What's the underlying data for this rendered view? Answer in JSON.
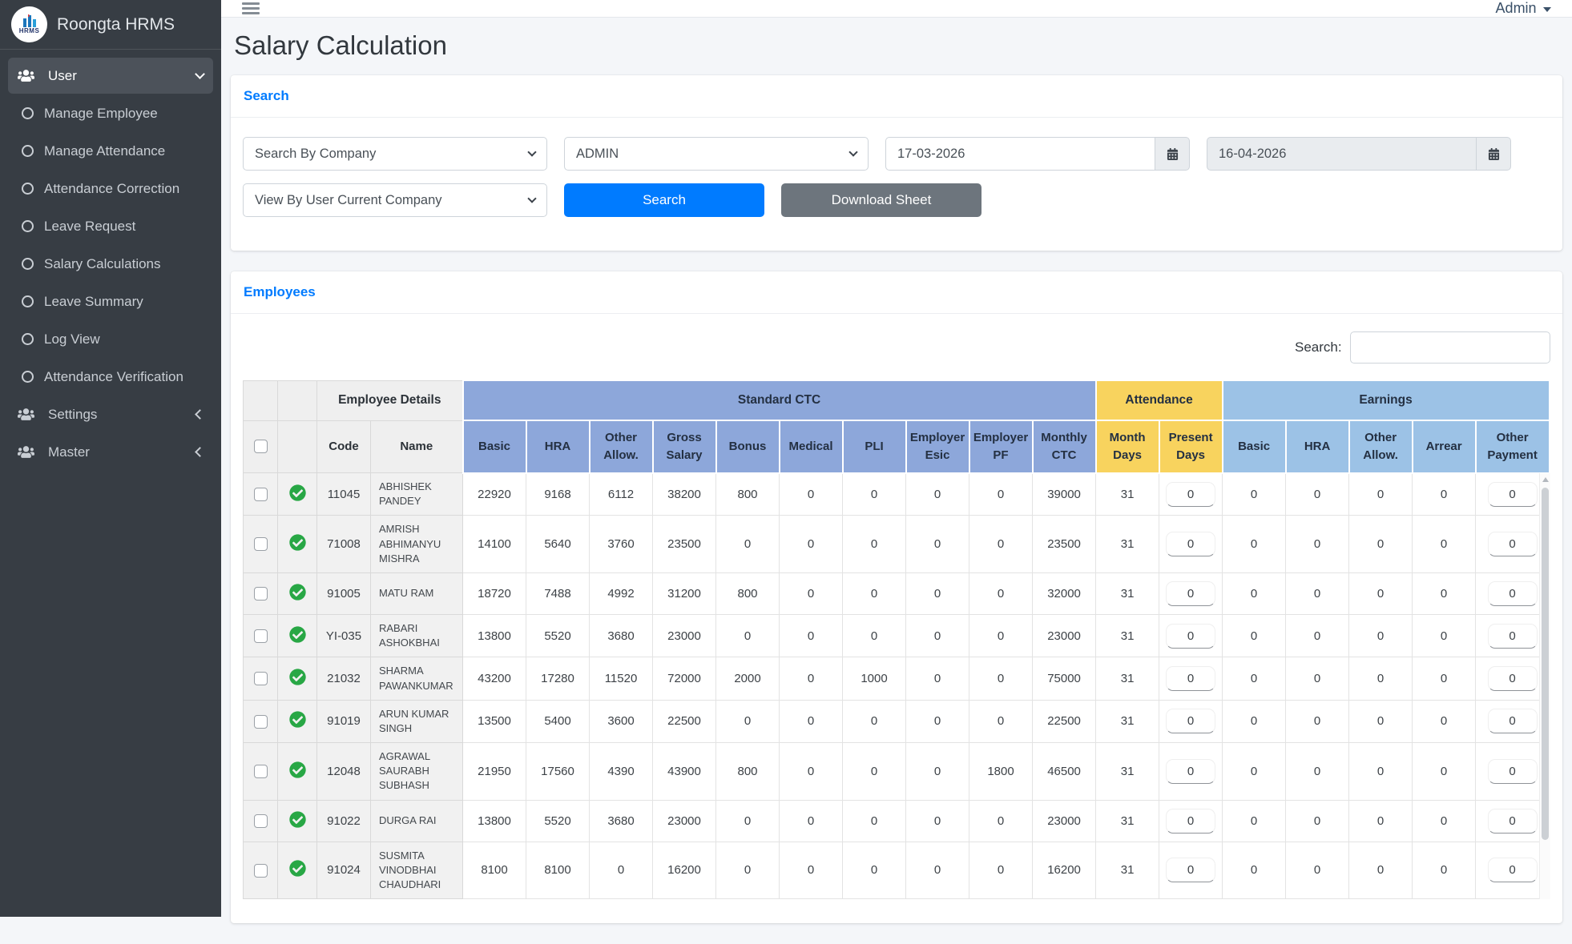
{
  "brand": {
    "logo_text": "HRMS",
    "title": "Roongta HRMS"
  },
  "topbar": {
    "user_label": "Admin"
  },
  "sidebar": {
    "user_label": "User",
    "user_children": [
      "Manage Employee",
      "Manage Attendance",
      "Attendance Correction",
      "Leave Request",
      "Salary Calculations",
      "Leave Summary",
      "Log View",
      "Attendance Verification"
    ],
    "collapsed_items": [
      "Settings",
      "Master"
    ]
  },
  "page": {
    "title": "Salary Calculation"
  },
  "search_panel": {
    "header": "Search",
    "company_select": "Search By Company",
    "admin_select": "ADMIN",
    "date_from": "17-03-2026",
    "date_to": "16-04-2026",
    "view_by_select": "View By User Current Company",
    "search_button": "Search",
    "download_button": "Download Sheet"
  },
  "employees_panel": {
    "header": "Employees",
    "search_label": "Search:",
    "search_value": ""
  },
  "table": {
    "groups": [
      {
        "label": "Employee Details",
        "key": "employee",
        "span": 2
      },
      {
        "label": "Standard CTC",
        "key": "std",
        "span": 10
      },
      {
        "label": "Attendance",
        "key": "att",
        "span": 2
      },
      {
        "label": "Earnings",
        "key": "earn",
        "span": 5
      }
    ],
    "columns": [
      {
        "label": "Code",
        "group": "employee"
      },
      {
        "label": "Name",
        "group": "employee"
      },
      {
        "label": "Basic",
        "group": "std"
      },
      {
        "label": "HRA",
        "group": "std"
      },
      {
        "label": "Other Allow.",
        "group": "std"
      },
      {
        "label": "Gross Salary",
        "group": "std"
      },
      {
        "label": "Bonus",
        "group": "std"
      },
      {
        "label": "Medical",
        "group": "std"
      },
      {
        "label": "PLI",
        "group": "std"
      },
      {
        "label": "Employer Esic",
        "group": "std"
      },
      {
        "label": "Employer PF",
        "group": "std"
      },
      {
        "label": "Monthly CTC",
        "group": "std"
      },
      {
        "label": "Month Days",
        "group": "att"
      },
      {
        "label": "Present Days",
        "group": "att",
        "input": true
      },
      {
        "label": "Basic",
        "group": "earn"
      },
      {
        "label": "HRA",
        "group": "earn"
      },
      {
        "label": "Other Allow.",
        "group": "earn"
      },
      {
        "label": "Arrear",
        "group": "earn"
      },
      {
        "label": "Other Payment",
        "group": "earn",
        "input": true
      }
    ],
    "rows": [
      {
        "code": "11045",
        "name": "ABHISHEK PANDEY",
        "values": [
          22920,
          9168,
          6112,
          38200,
          800,
          0,
          0,
          0,
          0,
          39000,
          31,
          "0",
          0,
          0,
          0,
          0,
          "0"
        ]
      },
      {
        "code": "71008",
        "name": "AMRISH ABHIMANYU MISHRA",
        "values": [
          14100,
          5640,
          3760,
          23500,
          0,
          0,
          0,
          0,
          0,
          23500,
          31,
          "0",
          0,
          0,
          0,
          0,
          "0"
        ]
      },
      {
        "code": "91005",
        "name": "MATU RAM",
        "values": [
          18720,
          7488,
          4992,
          31200,
          800,
          0,
          0,
          0,
          0,
          32000,
          31,
          "0",
          0,
          0,
          0,
          0,
          "0"
        ]
      },
      {
        "code": "YI-035",
        "name": "RABARI ASHOKBHAI",
        "values": [
          13800,
          5520,
          3680,
          23000,
          0,
          0,
          0,
          0,
          0,
          23000,
          31,
          "0",
          0,
          0,
          0,
          0,
          "0"
        ]
      },
      {
        "code": "21032",
        "name": "SHARMA PAWANKUMAR",
        "values": [
          43200,
          17280,
          11520,
          72000,
          2000,
          0,
          1000,
          0,
          0,
          75000,
          31,
          "0",
          0,
          0,
          0,
          0,
          "0"
        ]
      },
      {
        "code": "91019",
        "name": "ARUN KUMAR SINGH",
        "values": [
          13500,
          5400,
          3600,
          22500,
          0,
          0,
          0,
          0,
          0,
          22500,
          31,
          "0",
          0,
          0,
          0,
          0,
          "0"
        ]
      },
      {
        "code": "12048",
        "name": "AGRAWAL SAURABH SUBHASH",
        "values": [
          21950,
          17560,
          4390,
          43900,
          800,
          0,
          0,
          0,
          1800,
          46500,
          31,
          "0",
          0,
          0,
          0,
          0,
          "0"
        ]
      },
      {
        "code": "91022",
        "name": "DURGA RAI",
        "values": [
          13800,
          5520,
          3680,
          23000,
          0,
          0,
          0,
          0,
          0,
          23000,
          31,
          "0",
          0,
          0,
          0,
          0,
          "0"
        ]
      },
      {
        "code": "91024",
        "name": "SUSMITA VINODBHAI CHAUDHARI",
        "values": [
          8100,
          8100,
          0,
          16200,
          0,
          0,
          0,
          0,
          0,
          16200,
          31,
          "0",
          0,
          0,
          0,
          0,
          "0"
        ]
      }
    ]
  },
  "colors": {
    "accent_blue": "#007bff",
    "button_gray": "#6d757d",
    "std_ctc_header": "#8da7da",
    "attendance_header": "#f8d35e",
    "earnings_header": "#9cc2e6",
    "employee_header_gray": "#efefef",
    "status_green": "#28a745",
    "sidebar_bg": "#373d44"
  }
}
